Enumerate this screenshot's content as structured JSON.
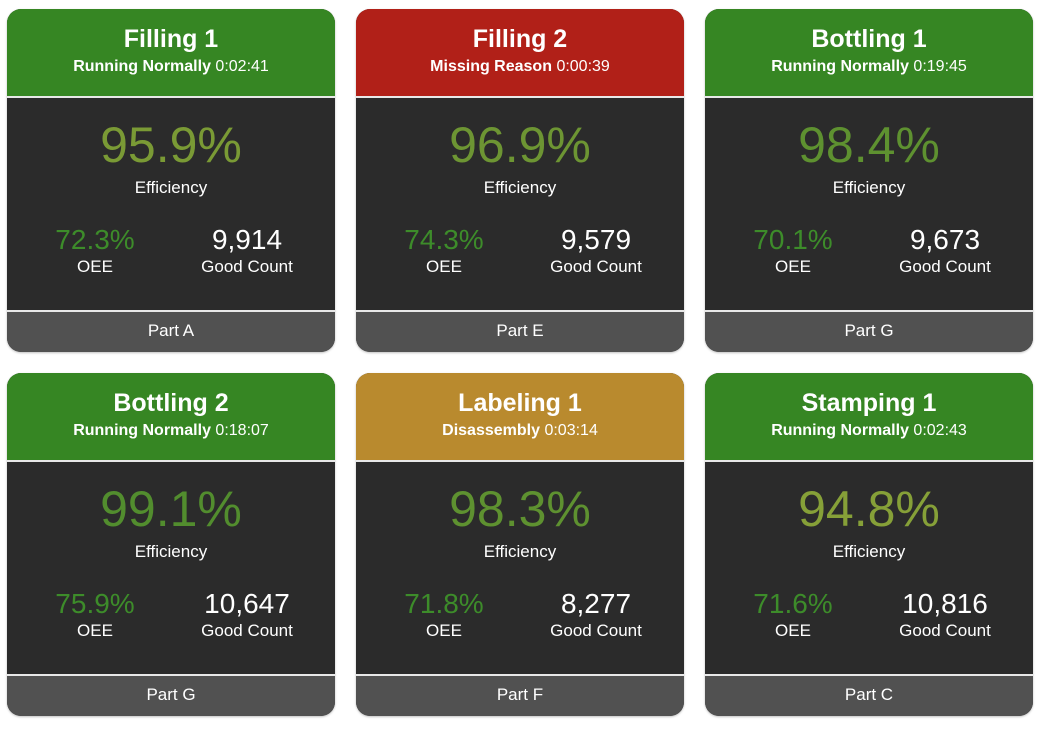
{
  "colors": {
    "running_green": "#368623",
    "missing_red": "#b12018",
    "disassembly_gold": "#b98a2e",
    "card_body": "#2b2b2b",
    "card_footer": "#515151",
    "efficiency_green_light": "#7a9a35",
    "efficiency_green": "#4f8a2d",
    "oee_green": "#3d8c2a",
    "count_white": "#ffffff"
  },
  "cards": [
    {
      "title": "Filling 1",
      "status": "Running Normally",
      "duration": "0:02:41",
      "header_color": "#368623",
      "efficiency": "95.9%",
      "efficiency_label": "Efficiency",
      "efficiency_color": "#7a9a35",
      "oee": "72.3%",
      "oee_label": "OEE",
      "good_count": "9,914",
      "good_count_label": "Good Count",
      "part": "Part A"
    },
    {
      "title": "Filling 2",
      "status": "Missing Reason",
      "duration": "0:00:39",
      "header_color": "#b12018",
      "efficiency": "96.9%",
      "efficiency_label": "Efficiency",
      "efficiency_color": "#6d9533",
      "oee": "74.3%",
      "oee_label": "OEE",
      "good_count": "9,579",
      "good_count_label": "Good Count",
      "part": "Part E"
    },
    {
      "title": "Bottling 1",
      "status": "Running Normally",
      "duration": "0:19:45",
      "header_color": "#368623",
      "efficiency": "98.4%",
      "efficiency_label": "Efficiency",
      "efficiency_color": "#5e9130",
      "oee": "70.1%",
      "oee_label": "OEE",
      "good_count": "9,673",
      "good_count_label": "Good Count",
      "part": "Part G"
    },
    {
      "title": "Bottling 2",
      "status": "Running Normally",
      "duration": "0:18:07",
      "header_color": "#368623",
      "efficiency": "99.1%",
      "efficiency_label": "Efficiency",
      "efficiency_color": "#528d2e",
      "oee": "75.9%",
      "oee_label": "OEE",
      "good_count": "10,647",
      "good_count_label": "Good Count",
      "part": "Part G"
    },
    {
      "title": "Labeling 1",
      "status": "Disassembly",
      "duration": "0:03:14",
      "header_color": "#b98a2e",
      "efficiency": "98.3%",
      "efficiency_label": "Efficiency",
      "efficiency_color": "#5e9130",
      "oee": "71.8%",
      "oee_label": "OEE",
      "good_count": "8,277",
      "good_count_label": "Good Count",
      "part": "Part F"
    },
    {
      "title": "Stamping 1",
      "status": "Running Normally",
      "duration": "0:02:43",
      "header_color": "#368623",
      "efficiency": "94.8%",
      "efficiency_label": "Efficiency",
      "efficiency_color": "#86a038",
      "oee": "71.6%",
      "oee_label": "OEE",
      "good_count": "10,816",
      "good_count_label": "Good Count",
      "part": "Part C"
    }
  ]
}
